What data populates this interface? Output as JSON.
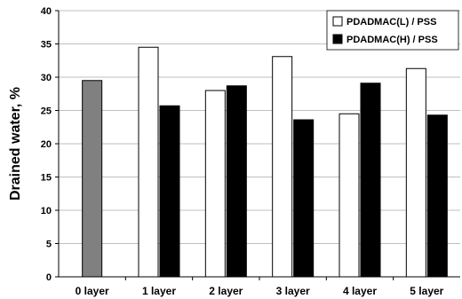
{
  "chart_data": {
    "type": "bar",
    "ylabel": "Drained water, %",
    "xlabel": "",
    "ylim": [
      0,
      40
    ],
    "yticks": [
      "0",
      "5",
      "10",
      "15",
      "20",
      "25",
      "30",
      "35",
      "40"
    ],
    "grid": "horizontal",
    "legend_position": "top-right",
    "categories": [
      "0 layer",
      "1 layer",
      "2 layer",
      "3 layer",
      "4 layer",
      "5 layer"
    ],
    "reference": {
      "category": "0 layer",
      "value": 29.5,
      "color": "#808080"
    },
    "series": [
      {
        "name": "PDADMAC(L) / PSS",
        "fill": "#ffffff",
        "values": [
          null,
          34.5,
          28.0,
          33.1,
          24.5,
          31.3
        ]
      },
      {
        "name": "PDADMAC(H) / PSS",
        "fill": "#000000",
        "values": [
          null,
          25.7,
          28.7,
          23.6,
          29.1,
          24.3
        ]
      }
    ]
  }
}
